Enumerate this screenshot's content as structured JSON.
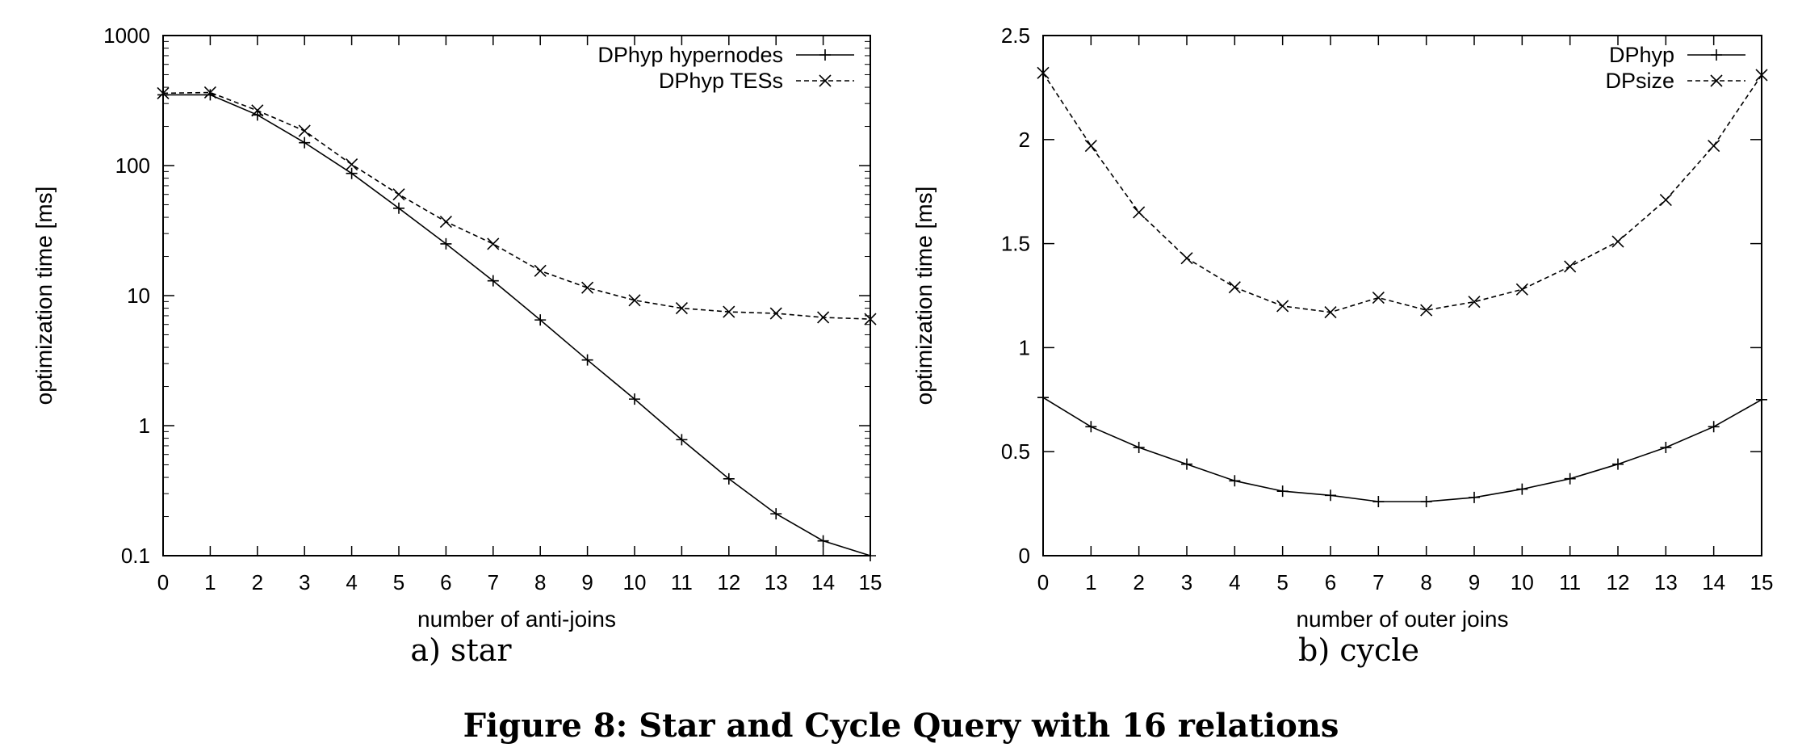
{
  "figure_caption": "Figure 8: Star and Cycle Query with 16 relations",
  "chart_data": [
    {
      "type": "line",
      "subcaption": "a) star",
      "xlabel": "number of anti-joins",
      "ylabel": "optimization time [ms]",
      "yscale": "log",
      "xlim": [
        0,
        15
      ],
      "ylim": [
        0.1,
        1000
      ],
      "x_ticks": [
        "0",
        "1",
        "2",
        "3",
        "4",
        "5",
        "6",
        "7",
        "8",
        "9",
        "10",
        "11",
        "12",
        "13",
        "14",
        "15"
      ],
      "y_ticks": [
        "0.1",
        "1",
        "10",
        "100",
        "1000"
      ],
      "legend_position": "top-right",
      "grid": false,
      "series": [
        {
          "name": "DPhyp hypernodes",
          "style": "solid",
          "marker": "+",
          "x": [
            0,
            1,
            2,
            3,
            4,
            5,
            6,
            7,
            8,
            9,
            10,
            11,
            12,
            13,
            14,
            15
          ],
          "values": [
            350,
            350,
            245,
            150,
            87,
            47,
            25,
            13,
            6.5,
            3.2,
            1.6,
            0.78,
            0.39,
            0.21,
            0.13,
            0.1
          ]
        },
        {
          "name": "DPhyp TESs",
          "style": "dashed",
          "marker": "x",
          "x": [
            0,
            1,
            2,
            3,
            4,
            5,
            6,
            7,
            8,
            9,
            10,
            11,
            12,
            13,
            14,
            15
          ],
          "values": [
            360,
            365,
            265,
            185,
            102,
            60,
            37,
            25,
            15.5,
            11.5,
            9.2,
            8.0,
            7.5,
            7.3,
            6.8,
            6.6
          ]
        }
      ]
    },
    {
      "type": "line",
      "subcaption": "b) cycle",
      "xlabel": "number of outer joins",
      "ylabel": "optimization time [ms]",
      "yscale": "linear",
      "xlim": [
        0,
        15
      ],
      "ylim": [
        0,
        2.5
      ],
      "x_ticks": [
        "0",
        "1",
        "2",
        "3",
        "4",
        "5",
        "6",
        "7",
        "8",
        "9",
        "10",
        "11",
        "12",
        "13",
        "14",
        "15"
      ],
      "y_ticks": [
        "0",
        "0.5",
        "1",
        "1.5",
        "2",
        "2.5"
      ],
      "legend_position": "top-right",
      "grid": false,
      "series": [
        {
          "name": "DPhyp",
          "style": "solid",
          "marker": "+",
          "x": [
            0,
            1,
            2,
            3,
            4,
            5,
            6,
            7,
            8,
            9,
            10,
            11,
            12,
            13,
            14,
            15
          ],
          "values": [
            0.76,
            0.62,
            0.52,
            0.44,
            0.36,
            0.31,
            0.29,
            0.26,
            0.26,
            0.28,
            0.32,
            0.37,
            0.44,
            0.52,
            0.62,
            0.75
          ]
        },
        {
          "name": "DPsize",
          "style": "dashed",
          "marker": "x",
          "x": [
            0,
            1,
            2,
            3,
            4,
            5,
            6,
            7,
            8,
            9,
            10,
            11,
            12,
            13,
            14,
            15
          ],
          "values": [
            2.32,
            1.97,
            1.65,
            1.43,
            1.29,
            1.2,
            1.17,
            1.24,
            1.18,
            1.22,
            1.28,
            1.39,
            1.51,
            1.71,
            1.97,
            2.31
          ]
        }
      ]
    }
  ]
}
